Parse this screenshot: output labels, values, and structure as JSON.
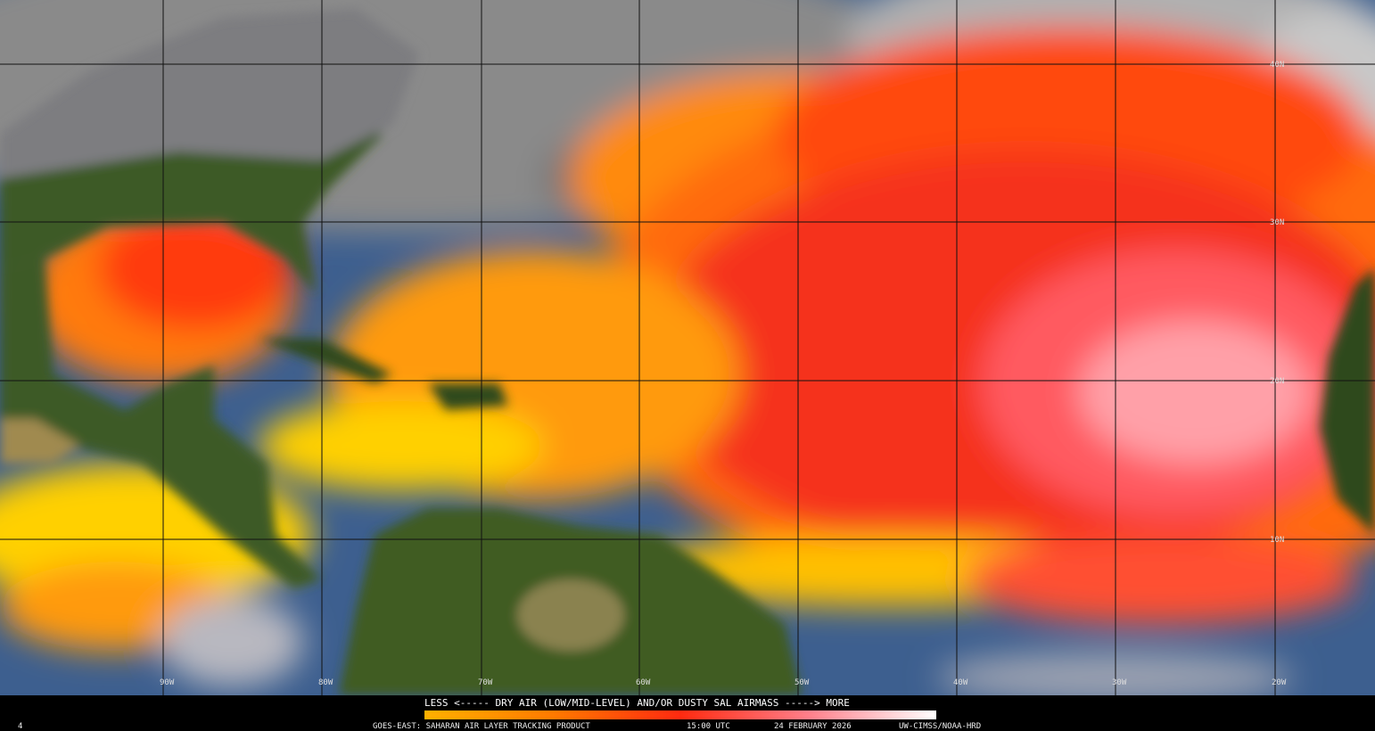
{
  "map": {
    "lon_labels": [
      "90W",
      "80W",
      "70W",
      "60W",
      "50W",
      "40W",
      "30W",
      "20W"
    ],
    "lat_labels": [
      "40N",
      "30N",
      "20N",
      "10N"
    ],
    "legend_text": "LESS <----- DRY AIR (LOW/MID-LEVEL) AND/OR DUSTY SAL AIRMASS -----> MORE",
    "frame_number": "4",
    "footer": {
      "product": "GOES-EAST: SAHARAN AIR LAYER TRACKING PRODUCT",
      "time": "15:00 UTC",
      "date": "24 FEBRUARY 2026",
      "credit": "UW-CIMSS/NOAA-HRD"
    }
  }
}
